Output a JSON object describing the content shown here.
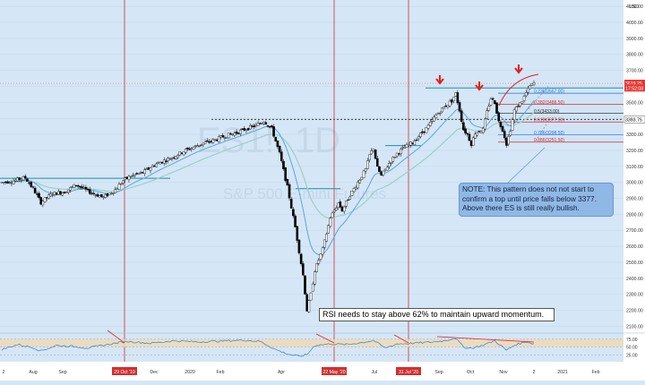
{
  "chart_data": {
    "type": "candlestick",
    "currency": "USD",
    "watermark": {
      "symbol": "ES1!, 1D",
      "name": "S&P 500 E-mini Futures"
    },
    "ylim": [
      2080,
      4140
    ],
    "y_ticks": [
      "4100.00",
      "4000.00",
      "3900.00",
      "3800.00",
      "3700.00",
      "3600.00",
      "3500.00",
      "3400.00",
      "3300.00",
      "3200.00",
      "3100.00",
      "3000.00",
      "2900.00",
      "2800.00",
      "2700.00",
      "2600.00",
      "2500.00",
      "2400.00",
      "2300.00",
      "2200.00",
      "2100.00"
    ],
    "x_ticks": [
      "2",
      "Aug",
      "Sep",
      "29 Oct '19",
      "Dec",
      "2020",
      "Feb",
      "Apr",
      "22 May '20",
      "Jul",
      "31 Jul '20",
      "Sep",
      "Oct",
      "Nov",
      "2",
      "2021",
      "Feb"
    ],
    "price_labels": [
      {
        "text": "3619.25",
        "value": 3619.25,
        "color": "#e53935"
      },
      {
        "text": "17:52:08",
        "value": 3590,
        "color": "#e53935"
      },
      {
        "text": "3393.75",
        "value": 3393.75,
        "color": "#ffffff"
      }
    ],
    "fib_levels": [
      {
        "label": "0.236(3557.00)",
        "ratio": 0.236,
        "value": 3557.0,
        "color": "#1e6fd9"
      },
      {
        "label": "0.382(3488.50)",
        "ratio": 0.382,
        "value": 3488.5,
        "color": "#d32f2f"
      },
      {
        "label": "0.5(3433.00)",
        "ratio": 0.5,
        "value": 3433.0,
        "color": "#222222"
      },
      {
        "label": "0.618(3377.50)",
        "ratio": 0.618,
        "value": 3377.5,
        "color": "#d32f2f"
      },
      {
        "label": "0.786(3298.50)",
        "ratio": 0.786,
        "value": 3298.5,
        "color": "#1e6fd9"
      },
      {
        "label": "0.886(3251.50)",
        "ratio": 0.886,
        "value": 3251.5,
        "color": "#d32f2f"
      }
    ],
    "key_levels": [
      {
        "name": "early-resistance",
        "value": 3025
      },
      {
        "name": "feb-high-dashed",
        "value": 3393.75
      },
      {
        "name": "sep-high",
        "value": 3590
      },
      {
        "name": "current",
        "value": 3619.25
      }
    ],
    "events": [
      "29 Oct '19",
      "22 May '20",
      "31 Jul '20"
    ],
    "price_path": [
      [
        0,
        3000
      ],
      [
        3,
        3010
      ],
      [
        6,
        3030
      ],
      [
        8,
        2960
      ],
      [
        10,
        2875
      ],
      [
        13,
        2930
      ],
      [
        16,
        2940
      ],
      [
        19,
        2985
      ],
      [
        22,
        2945
      ],
      [
        26,
        2905
      ],
      [
        29,
        2955
      ],
      [
        31,
        3010
      ],
      [
        33,
        3040
      ],
      [
        36,
        3060
      ],
      [
        39,
        3110
      ],
      [
        43,
        3150
      ],
      [
        47,
        3200
      ],
      [
        51,
        3240
      ],
      [
        54,
        3260
      ],
      [
        57,
        3290
      ],
      [
        60,
        3310
      ],
      [
        63,
        3340
      ],
      [
        65,
        3355
      ],
      [
        67,
        3385
      ],
      [
        69,
        3335
      ],
      [
        71,
        3180
      ],
      [
        73,
        2970
      ],
      [
        75,
        2720
      ],
      [
        77,
        2420
      ],
      [
        78,
        2200
      ],
      [
        79,
        2300
      ],
      [
        80,
        2450
      ],
      [
        82,
        2580
      ],
      [
        84,
        2780
      ],
      [
        86,
        2870
      ],
      [
        87,
        2825
      ],
      [
        89,
        2920
      ],
      [
        91,
        3000
      ],
      [
        93,
        3080
      ],
      [
        94,
        3170
      ],
      [
        95,
        3215
      ],
      [
        96,
        3090
      ],
      [
        97,
        3040
      ],
      [
        99,
        3120
      ],
      [
        101,
        3180
      ],
      [
        103,
        3220
      ],
      [
        105,
        3250
      ],
      [
        107,
        3300
      ],
      [
        109,
        3350
      ],
      [
        111,
        3420
      ],
      [
        113,
        3470
      ],
      [
        115,
        3510
      ],
      [
        116,
        3555
      ],
      [
        117,
        3450
      ],
      [
        118,
        3330
      ],
      [
        119,
        3300
      ],
      [
        120,
        3240
      ],
      [
        121,
        3310
      ],
      [
        123,
        3330
      ],
      [
        124,
        3440
      ],
      [
        125,
        3525
      ],
      [
        126,
        3500
      ],
      [
        127,
        3380
      ],
      [
        128,
        3330
      ],
      [
        129,
        3240
      ],
      [
        130,
        3330
      ],
      [
        131,
        3450
      ],
      [
        133,
        3510
      ],
      [
        134,
        3560
      ],
      [
        135,
        3600
      ],
      [
        136,
        3620
      ]
    ],
    "rsi": {
      "levels": [
        75,
        50,
        25
      ],
      "labels": [
        "75.00",
        "50.00",
        "25.00"
      ],
      "overbought_band": [
        75,
        50
      ],
      "points": [
        [
          0,
          42
        ],
        [
          4,
          58
        ],
        [
          8,
          48
        ],
        [
          10,
          38
        ],
        [
          14,
          55
        ],
        [
          18,
          52
        ],
        [
          22,
          47
        ],
        [
          28,
          60
        ],
        [
          32,
          68
        ],
        [
          38,
          62
        ],
        [
          44,
          70
        ],
        [
          50,
          66
        ],
        [
          56,
          69
        ],
        [
          62,
          72
        ],
        [
          66,
          68
        ],
        [
          70,
          42
        ],
        [
          73,
          28
        ],
        [
          76,
          20
        ],
        [
          78,
          26
        ],
        [
          80,
          55
        ],
        [
          84,
          60
        ],
        [
          88,
          58
        ],
        [
          92,
          64
        ],
        [
          95,
          71
        ],
        [
          98,
          47
        ],
        [
          101,
          60
        ],
        [
          105,
          62
        ],
        [
          110,
          66
        ],
        [
          113,
          70
        ],
        [
          116,
          78
        ],
        [
          118,
          50
        ],
        [
          120,
          46
        ],
        [
          123,
          56
        ],
        [
          126,
          70
        ],
        [
          129,
          40
        ],
        [
          131,
          56
        ],
        [
          134,
          67
        ],
        [
          136,
          60
        ]
      ]
    }
  },
  "annotations": {
    "note_box": "NOTE: This pattern does not not start to confirm a top until price falls below 3377. Above there ES is still really bullish.",
    "rsi_note": "RSI needs to stay above 62% to maintain upward momentum."
  },
  "colors": {
    "background": "#d5e6f6",
    "bull": "#ffffff",
    "bear": "#000000",
    "ema": "#5aa7d9",
    "fib_fill": "#cfe3f7",
    "event_line": "#d32f2f",
    "rsi": "#2a7fd4",
    "rsi_band": "#f0d9b3"
  }
}
